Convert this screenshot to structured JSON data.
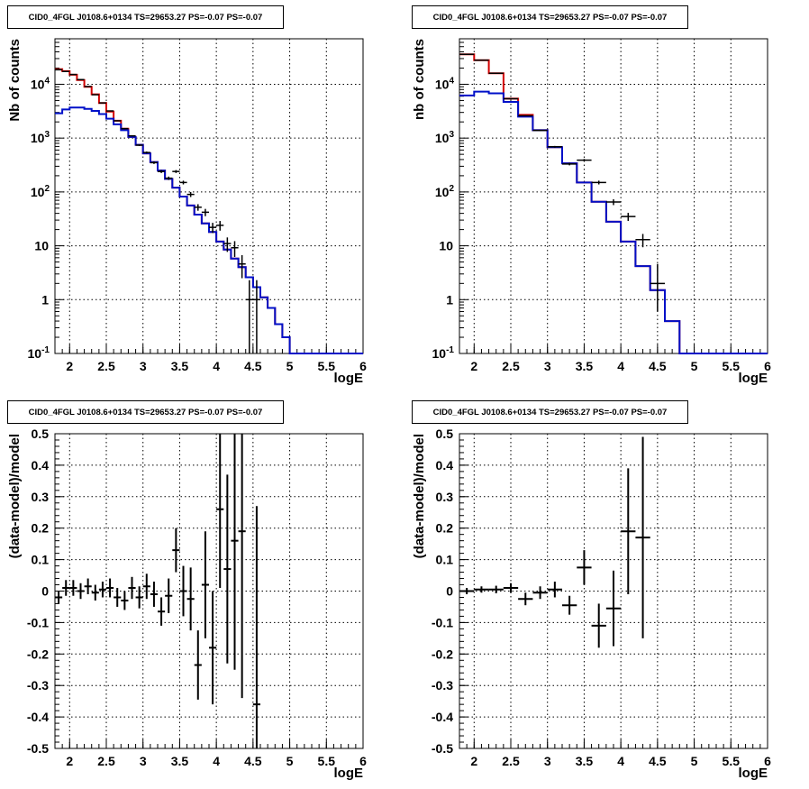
{
  "colors": {
    "data": "#000000",
    "total_model": "#d40000",
    "source_model": "#0010c8",
    "grid": "#000000"
  },
  "chart_data": [
    {
      "type": "line",
      "title": "CID0_4FGL J0108.6+0134 TS=29653.27 PS=-0.07 PS=-0.07",
      "xlabel": "logE",
      "ylabel": "Nb of counts",
      "xlim": [
        1.8,
        6.0
      ],
      "ylim": [
        0.1,
        70000
      ],
      "yscale": "log",
      "grid": true,
      "x_ticks": [
        "2",
        "2.5",
        "3",
        "3.5",
        "4",
        "4.5",
        "5",
        "5.5",
        "6"
      ],
      "y_ticks": [
        "10^-1",
        "1",
        "10",
        "10^2",
        "10^3",
        "10^4"
      ],
      "bin_edges": [
        1.8,
        1.9,
        2.0,
        2.1,
        2.2,
        2.3,
        2.4,
        2.5,
        2.6,
        2.7,
        2.8,
        2.9,
        3.0,
        3.1,
        3.2,
        3.3,
        3.4,
        3.5,
        3.6,
        3.7,
        3.8,
        3.9,
        4.0,
        4.1,
        4.2,
        4.3,
        4.4,
        4.5,
        4.6,
        4.7,
        4.8,
        4.9,
        5.0,
        5.1,
        5.2,
        5.3,
        5.4,
        5.5,
        5.6,
        5.7,
        5.8,
        5.9,
        6.0
      ],
      "series": [
        {
          "role": "total_model",
          "values": [
            19000,
            17500,
            15000,
            12000,
            9000,
            6500,
            4500,
            3100,
            2100,
            1500,
            1050,
            750,
            520,
            360,
            250,
            175,
            120,
            82,
            56,
            38,
            26,
            18,
            12,
            8.5,
            5.8,
            4.0,
            2.6,
            1.7,
            1.1,
            0.7,
            0.35,
            0.2,
            0.1,
            0.1,
            0.1,
            0.1,
            0.1,
            0.1,
            0.1,
            0.1,
            0.1,
            0.1
          ]
        },
        {
          "role": "source_model",
          "values": [
            2900,
            3400,
            3700,
            3700,
            3500,
            3200,
            2800,
            2300,
            1800,
            1400,
            1050,
            750,
            520,
            360,
            250,
            175,
            120,
            82,
            56,
            38,
            26,
            18,
            12,
            8.5,
            5.8,
            4.0,
            2.6,
            1.7,
            1.1,
            0.7,
            0.35,
            0.2,
            0.1,
            0.1,
            0.1,
            0.1,
            0.1,
            0.1,
            0.1,
            0.1,
            0.1,
            0.1
          ]
        },
        {
          "role": "data",
          "x": [
            1.85,
            1.95,
            2.05,
            2.15,
            2.25,
            2.35,
            2.45,
            2.55,
            2.65,
            2.75,
            2.85,
            2.95,
            3.05,
            3.15,
            3.25,
            3.35,
            3.45,
            3.55,
            3.65,
            3.75,
            3.85,
            3.95,
            4.05,
            4.15,
            4.25,
            4.35,
            4.45,
            4.55
          ],
          "y": [
            18600,
            17300,
            15200,
            12200,
            9100,
            6400,
            4500,
            3200,
            2100,
            1500,
            1100,
            740,
            540,
            350,
            240,
            180,
            240,
            150,
            90,
            52,
            42,
            22,
            24,
            11,
            9.2,
            4.6,
            1.0,
            1.0
          ],
          "yerr_low": [
            140,
            130,
            120,
            110,
            95,
            80,
            67,
            57,
            46,
            39,
            33,
            27,
            23,
            19,
            15,
            13,
            15,
            12,
            9.5,
            7.2,
            6.5,
            4.7,
            4.9,
            3.3,
            3.0,
            2.1,
            0.9,
            0.9
          ],
          "yerr_high": [
            140,
            130,
            120,
            110,
            95,
            80,
            67,
            57,
            46,
            39,
            33,
            27,
            23,
            19,
            15,
            13,
            15,
            12,
            9.5,
            7.2,
            6.5,
            4.7,
            4.9,
            3.3,
            3.0,
            2.1,
            1.3,
            1.3
          ]
        }
      ]
    },
    {
      "type": "line",
      "title": "CID0_4FGL J0108.6+0134 TS=29653.27 PS=-0.07 PS=-0.07",
      "xlabel": "logE",
      "ylabel": "nb of counts",
      "xlim": [
        1.8,
        6.0
      ],
      "ylim": [
        0.1,
        70000
      ],
      "yscale": "log",
      "grid": true,
      "x_ticks": [
        "2",
        "2.5",
        "3",
        "3.5",
        "4",
        "4.5",
        "5",
        "5.5",
        "6"
      ],
      "y_ticks": [
        "10^-1",
        "1",
        "10",
        "10^2",
        "10^3",
        "10^4"
      ],
      "bin_edges": [
        1.8,
        2.0,
        2.2,
        2.4,
        2.6,
        2.8,
        3.0,
        3.2,
        3.4,
        3.6,
        3.8,
        4.0,
        4.2,
        4.4,
        4.6,
        4.8,
        5.0,
        5.2,
        5.4,
        5.6,
        5.8,
        6.0
      ],
      "series": [
        {
          "role": "total_model",
          "values": [
            36000,
            28000,
            16000,
            5400,
            2700,
            1400,
            680,
            340,
            150,
            66,
            28,
            12,
            4.2,
            1.5,
            0.4,
            0.1,
            0.1,
            0.1,
            0.1,
            0.1,
            0.1
          ]
        },
        {
          "role": "source_model",
          "values": [
            6200,
            7300,
            6800,
            4700,
            2500,
            1400,
            680,
            340,
            150,
            66,
            28,
            12,
            4.2,
            1.5,
            0.4,
            0.1,
            0.1,
            0.1,
            0.1,
            0.1,
            0.1
          ]
        },
        {
          "role": "data",
          "x": [
            1.9,
            2.1,
            2.3,
            2.5,
            2.7,
            2.9,
            3.1,
            3.3,
            3.5,
            3.7,
            3.9,
            4.1,
            4.3,
            4.5
          ],
          "y": [
            36000,
            28000,
            16000,
            5400,
            2600,
            1390,
            690,
            330,
            390,
            150,
            65,
            35,
            13,
            2.0
          ],
          "yerr_low": [
            190,
            170,
            126,
            73,
            51,
            37,
            26,
            18,
            20,
            12,
            8,
            6,
            3.6,
            1.4
          ],
          "yerr_high": [
            190,
            170,
            126,
            73,
            51,
            37,
            26,
            18,
            20,
            12,
            8,
            6,
            3.6,
            2.6
          ]
        }
      ]
    },
    {
      "type": "scatter",
      "title": "CID0_4FGL J0108.6+0134 TS=29653.27 PS=-0.07 PS=-0.07",
      "xlabel": "logE",
      "ylabel": "(data-model)/model",
      "xlim": [
        1.8,
        6.0
      ],
      "ylim": [
        -0.5,
        0.5
      ],
      "grid": true,
      "x_ticks": [
        "2",
        "2.5",
        "3",
        "3.5",
        "4",
        "4.5",
        "5",
        "5.5",
        "6"
      ],
      "y_ticks": [
        "-0.5",
        "-0.4",
        "-0.3",
        "-0.2",
        "-0.1",
        "0",
        "0.1",
        "0.2",
        "0.3",
        "0.4",
        "0.5"
      ],
      "x_halfwidth": 0.05,
      "points": {
        "x": [
          1.85,
          1.95,
          2.05,
          2.15,
          2.25,
          2.35,
          2.45,
          2.55,
          2.65,
          2.75,
          2.85,
          2.95,
          3.05,
          3.15,
          3.25,
          3.35,
          3.45,
          3.55,
          3.65,
          3.75,
          3.85,
          3.95,
          4.05,
          4.15,
          4.25,
          4.35,
          4.55
        ],
        "y": [
          -0.02,
          0.01,
          0.01,
          0.0,
          0.015,
          -0.005,
          0.005,
          0.01,
          -0.02,
          -0.03,
          0.01,
          -0.02,
          0.015,
          -0.01,
          -0.065,
          -0.015,
          0.13,
          0.0,
          -0.025,
          -0.235,
          0.02,
          -0.18,
          0.26,
          0.07,
          0.16,
          0.19,
          -0.36
        ],
        "yerr": [
          0.02,
          0.025,
          0.025,
          0.025,
          0.025,
          0.025,
          0.025,
          0.03,
          0.03,
          0.03,
          0.035,
          0.035,
          0.04,
          0.04,
          0.045,
          0.055,
          0.07,
          0.08,
          0.1,
          0.11,
          0.17,
          0.18,
          0.25,
          0.3,
          0.41,
          0.53,
          0.63
        ]
      }
    },
    {
      "type": "scatter",
      "title": "CID0_4FGL J0108.6+0134 TS=29653.27 PS=-0.07 PS=-0.07",
      "xlabel": "logE",
      "ylabel": "(data-model)/model",
      "xlim": [
        1.8,
        6.0
      ],
      "ylim": [
        -0.5,
        0.5
      ],
      "grid": true,
      "x_ticks": [
        "2",
        "2.5",
        "3",
        "3.5",
        "4",
        "4.5",
        "5",
        "5.5",
        "6"
      ],
      "y_ticks": [
        "-0.5",
        "-0.4",
        "-0.3",
        "-0.2",
        "-0.1",
        "0",
        "0.1",
        "0.2",
        "0.3",
        "0.4",
        "0.5"
      ],
      "x_halfwidth": 0.1,
      "points": {
        "x": [
          1.9,
          2.1,
          2.3,
          2.5,
          2.7,
          2.9,
          3.1,
          3.3,
          3.5,
          3.7,
          3.9,
          4.1,
          4.3
        ],
        "y": [
          0.0,
          0.005,
          0.005,
          0.01,
          -0.025,
          -0.005,
          0.005,
          -0.045,
          0.075,
          -0.11,
          -0.055,
          0.19,
          0.17
        ],
        "yerr": [
          0.01,
          0.01,
          0.012,
          0.015,
          0.02,
          0.02,
          0.025,
          0.03,
          0.055,
          0.07,
          0.12,
          0.2,
          0.32
        ]
      }
    }
  ]
}
